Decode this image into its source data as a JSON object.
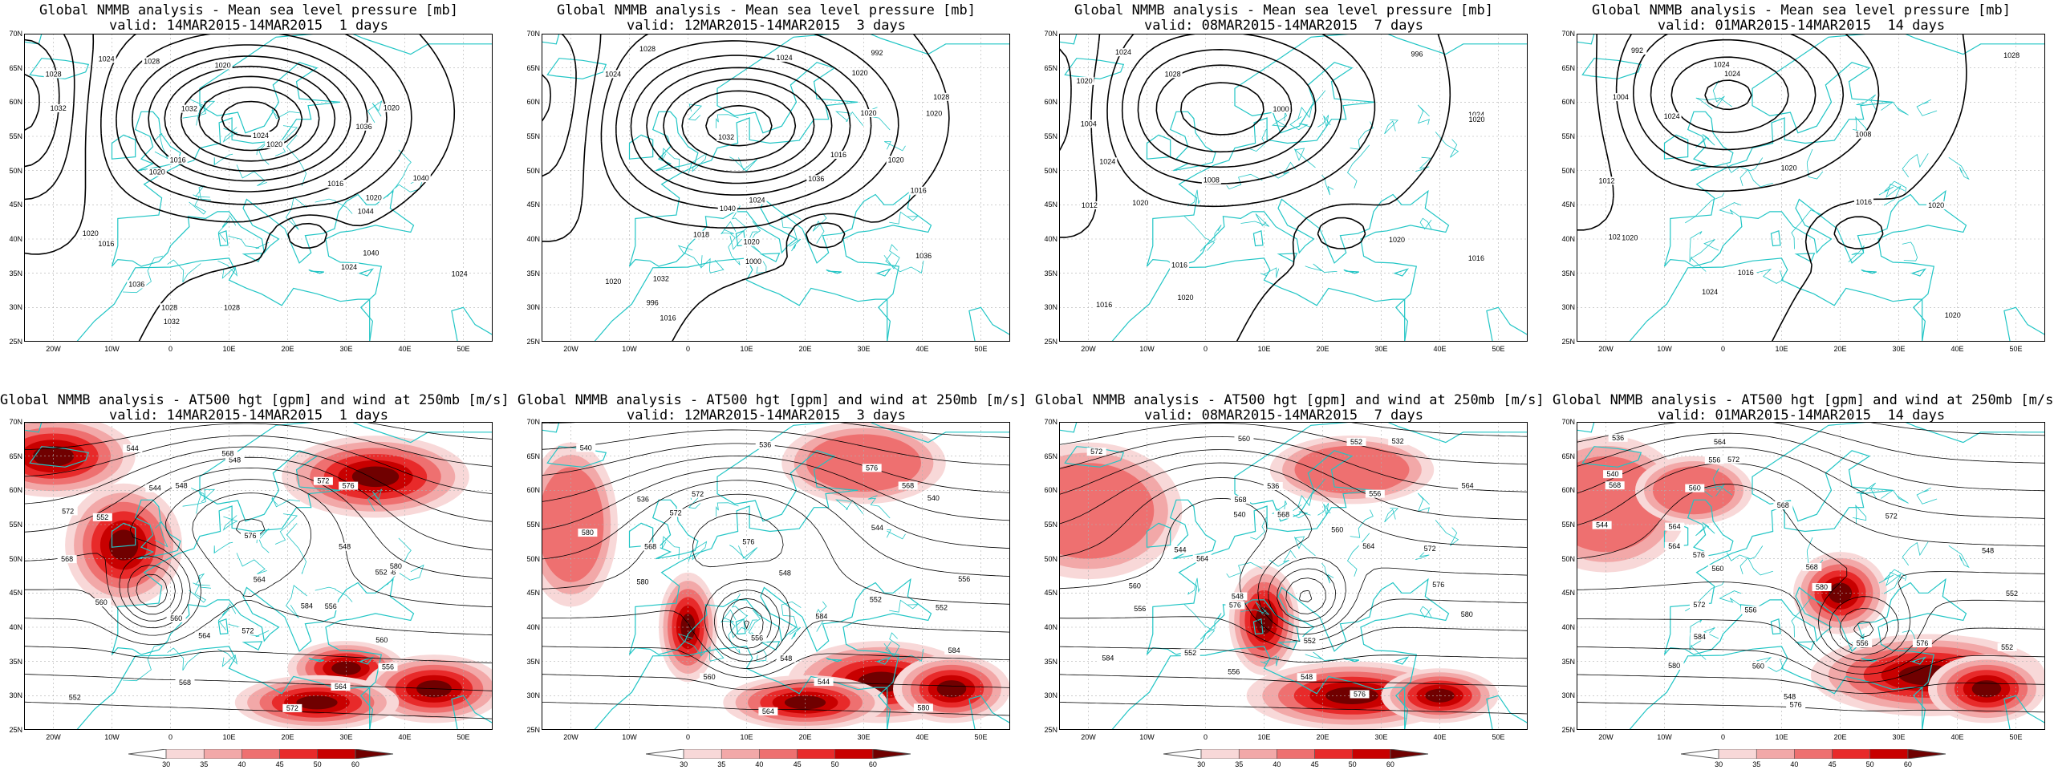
{
  "mslp_title": "Global NMMB analysis - Mean sea level pressure [mb]",
  "z500_title": "Global NMMB analysis - AT500 hgt [gpm] and wind at 250mb [m/s]",
  "periods": [
    "valid: 14MAR2015-14MAR2015  1 days",
    "valid: 12MAR2015-14MAR2015  3 days",
    "valid: 08MAR2015-14MAR2015  7 days",
    "valid: 01MAR2015-14MAR2015  14 days"
  ],
  "lat_labels": [
    "70N",
    "65N",
    "60N",
    "55N",
    "50N",
    "45N",
    "40N",
    "35N",
    "30N",
    "25N"
  ],
  "lon_labels": [
    "20W",
    "10W",
    "0",
    "10E",
    "20E",
    "30E",
    "40E",
    "50E"
  ],
  "colorbar_labels": [
    "30",
    "35",
    "40",
    "45",
    "50",
    "60"
  ],
  "colors": {
    "coast": "#21c5c5",
    "contour": "#000000",
    "wind_levels": [
      "#f8d8d8",
      "#f2a8a8",
      "#ee7070",
      "#e82a2a",
      "#c80000",
      "#700000"
    ]
  },
  "mslp_panels": [
    {
      "labels": [
        "1028",
        "1032",
        "1036",
        "1040",
        "1044",
        "1040",
        "1036",
        "1032",
        "1028",
        "1024",
        "1020",
        "1020",
        "1016",
        "1024",
        "1028",
        "1020",
        "1020",
        "1016",
        "1016",
        "1020",
        "1024",
        "1028",
        "1024",
        "1032",
        "1020"
      ]
    },
    {
      "labels": [
        "1024",
        "1028",
        "1032",
        "1036",
        "1040",
        "1036",
        "1032",
        "1028",
        "1024",
        "1020",
        "1016",
        "1024",
        "1020",
        "1020",
        "1016",
        "1020",
        "1020",
        "1020",
        "1016",
        "1018",
        "1000",
        "996",
        "992"
      ]
    },
    {
      "labels": [
        "996",
        "1000",
        "1004",
        "1008",
        "1012",
        "1016",
        "1020",
        "1024",
        "1028",
        "1024",
        "1024",
        "1020",
        "1020",
        "1016",
        "1016",
        "1020",
        "1020"
      ]
    },
    {
      "labels": [
        "992",
        "1004",
        "1008",
        "1012",
        "1016",
        "1020",
        "1024",
        "1028",
        "1024",
        "1024",
        "1020",
        "1020",
        "1020",
        "1016",
        "1020",
        "1024"
      ]
    }
  ],
  "z500_panels": [
    {
      "labels": [
        "544",
        "548",
        "552",
        "556",
        "560",
        "564",
        "568",
        "572",
        "576",
        "572",
        "568",
        "564",
        "560",
        "556",
        "552",
        "548",
        "544",
        "548",
        "552",
        "556",
        "560",
        "564",
        "568",
        "572",
        "576",
        "580",
        "584",
        "572"
      ]
    },
    {
      "labels": [
        "536",
        "540",
        "544",
        "548",
        "552",
        "556",
        "560",
        "564",
        "568",
        "572",
        "576",
        "580",
        "584",
        "584",
        "580",
        "576",
        "572",
        "568",
        "556",
        "552",
        "548",
        "544",
        "540",
        "536",
        "580"
      ]
    },
    {
      "labels": [
        "532",
        "536",
        "540",
        "544",
        "548",
        "552",
        "556",
        "560",
        "564",
        "568",
        "572",
        "576",
        "580",
        "584",
        "576",
        "572",
        "568",
        "564",
        "560",
        "556",
        "552",
        "548",
        "552",
        "556",
        "560",
        "564",
        "576"
      ]
    },
    {
      "labels": [
        "536",
        "540",
        "544",
        "548",
        "552",
        "556",
        "560",
        "564",
        "568",
        "572",
        "576",
        "580",
        "584",
        "580",
        "576",
        "572",
        "568",
        "564",
        "560",
        "556",
        "552",
        "548",
        "556",
        "560",
        "564",
        "568",
        "572",
        "576"
      ]
    }
  ]
}
